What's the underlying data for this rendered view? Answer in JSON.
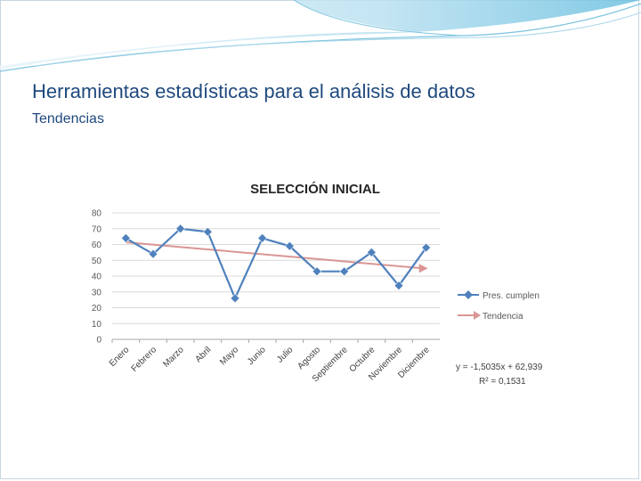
{
  "slide": {
    "title": "Herramientas estadísticas para el análisis de datos",
    "subtitle": "Tendencias"
  },
  "colors": {
    "title": "#1f497d",
    "series": "#4f81bd",
    "trend": "#c0504d",
    "swoosh": "#8fc7e0"
  },
  "chart_data": {
    "type": "line",
    "title": "SELECCIÓN INICIAL",
    "categories": [
      "Enero",
      "Febrero",
      "Marzo",
      "Abril",
      "Mayo",
      "Junio",
      "Julio",
      "Agosto",
      "Septiembre",
      "Octubre",
      "Noviembre",
      "Diciembre"
    ],
    "series": [
      {
        "name": "Pres. cumplen",
        "values": [
          64,
          54,
          70,
          68,
          26,
          64,
          59,
          43,
          43,
          55,
          34,
          58
        ]
      }
    ],
    "trendline": {
      "name": "Tendencia",
      "slope": -1.5035,
      "intercept": 62.939,
      "equation": "y = -1,5035x + 62,939",
      "r_squared": "R² = 0,1531"
    },
    "y_ticks": [
      "0",
      "10",
      "20",
      "30",
      "40",
      "50",
      "60",
      "70",
      "80"
    ],
    "ylim": [
      0,
      80
    ],
    "grid": true,
    "legend_position": "right"
  }
}
